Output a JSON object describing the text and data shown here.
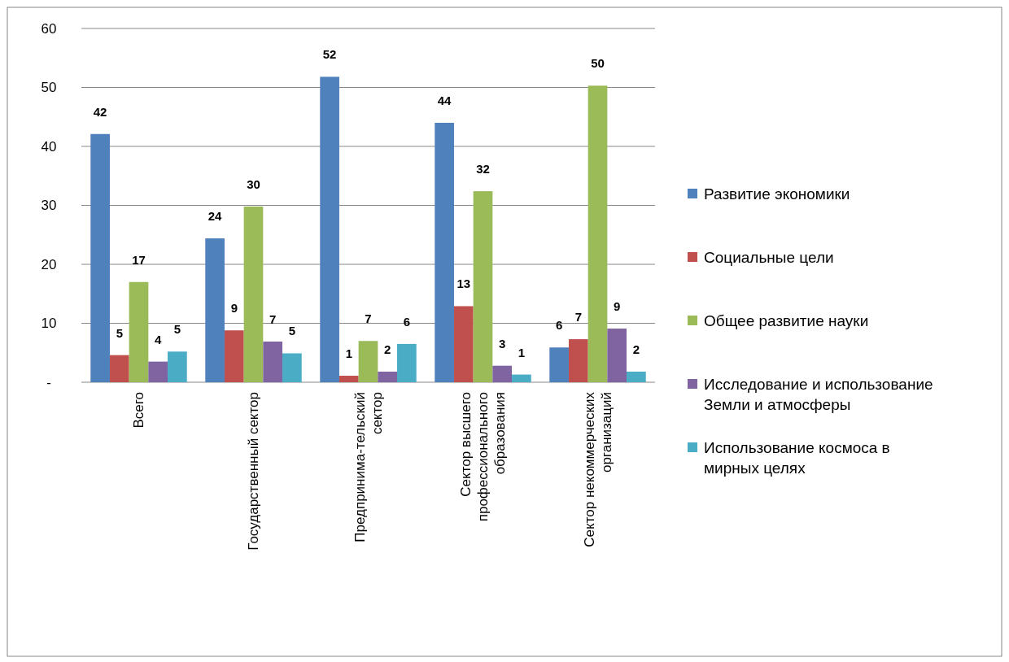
{
  "chart_data": {
    "type": "bar",
    "categories": [
      "Всего",
      "Государственный сектор",
      "Предпринима-тельский сектор",
      "Сектор высшего профессионального образования",
      "Сектор некоммерческих организаций"
    ],
    "series": [
      {
        "name": "Развитие экономики",
        "color": "#4f81bd",
        "values": [
          42.1,
          24.4,
          51.8,
          44.0,
          5.9
        ],
        "value_labels": [
          "42",
          "24",
          "52",
          "44",
          "6"
        ]
      },
      {
        "name": "Социальные цели",
        "color": "#c0504d",
        "values": [
          4.6,
          8.8,
          1.1,
          12.9,
          7.3
        ],
        "value_labels": [
          "5",
          "9",
          "1",
          "13",
          "7"
        ]
      },
      {
        "name": "Общее развитие науки",
        "color": "#9bbb59",
        "values": [
          17.0,
          29.8,
          7.0,
          32.4,
          50.3
        ],
        "value_labels": [
          "17",
          "30",
          "7",
          "32",
          "50"
        ]
      },
      {
        "name": "Исследование и использование Земли и атмосферы",
        "color": "#8064a2",
        "values": [
          3.5,
          6.9,
          1.8,
          2.8,
          9.1
        ],
        "value_labels": [
          "4",
          "7",
          "2",
          "3",
          "9"
        ]
      },
      {
        "name": "Использование космоса в мирных целях",
        "color": "#4bacc6",
        "values": [
          5.2,
          4.9,
          6.5,
          1.3,
          1.8
        ],
        "value_labels": [
          "5",
          "5",
          "6",
          "1",
          "2"
        ]
      }
    ],
    "ylim": [
      0,
      60
    ],
    "yticks": [
      {
        "value": 0,
        "label": "-"
      },
      10,
      20,
      30,
      40,
      50,
      60
    ],
    "grid": "y",
    "legend": "right"
  }
}
